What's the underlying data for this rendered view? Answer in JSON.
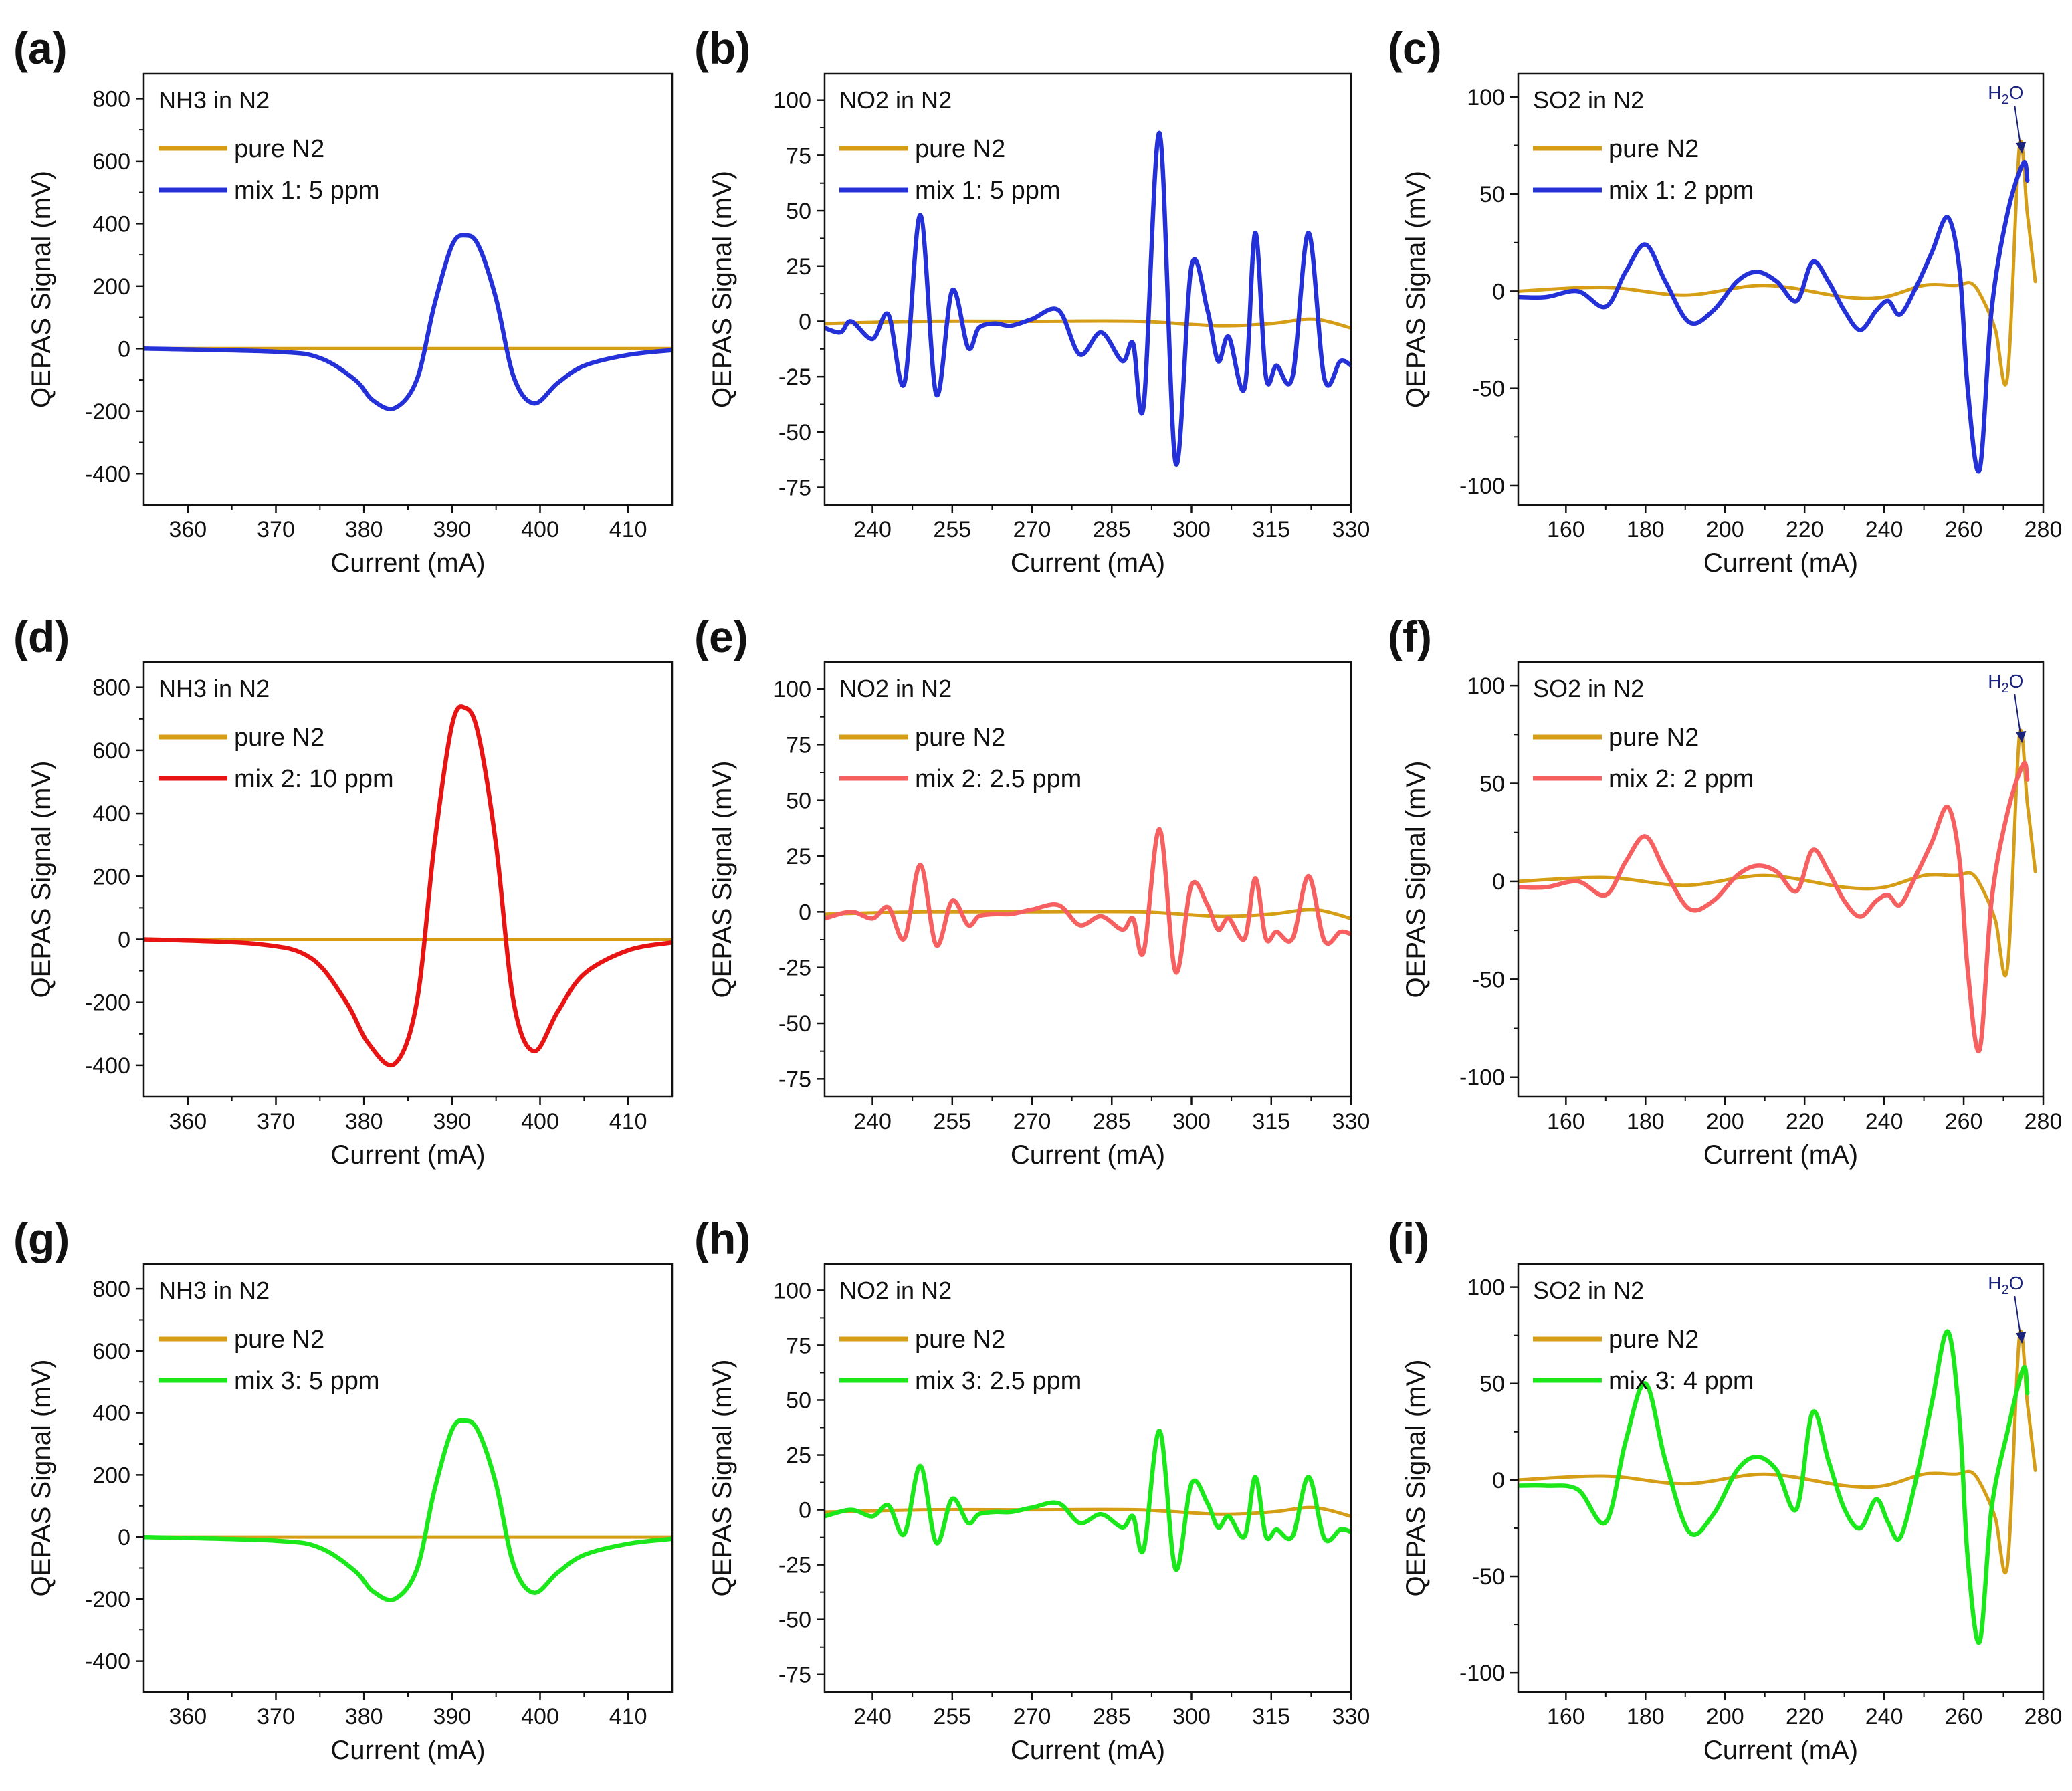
{
  "figure": {
    "background": "#ffffff"
  },
  "chart_data": [
    {
      "panel": "(a)",
      "type": "line",
      "gas_title": "NH3 in N2",
      "xlabel": "Current (mA)",
      "ylabel": "QEPAS Signal (mV)",
      "xlim": [
        355,
        415
      ],
      "ylim": [
        -500,
        880
      ],
      "xticks": [
        360,
        370,
        380,
        390,
        400,
        410
      ],
      "yticks": [
        -400,
        -200,
        0,
        200,
        400,
        600,
        800
      ],
      "series": [
        {
          "name": "pure N2",
          "color": "#d69e16",
          "x": [
            355,
            415
          ],
          "y": [
            0,
            0
          ]
        },
        {
          "name": "mix 1: 5 ppm",
          "color": "#2430d8",
          "x": [
            355,
            370,
            375,
            379,
            381,
            383.5,
            386,
            388,
            390,
            391.5,
            393,
            395,
            397,
            399.3,
            402,
            405,
            410,
            415
          ],
          "y": [
            0,
            -10,
            -30,
            -100,
            -165,
            -190,
            -100,
            140,
            330,
            362,
            330,
            160,
            -90,
            -175,
            -110,
            -55,
            -20,
            -5
          ]
        }
      ]
    },
    {
      "panel": "(b)",
      "type": "line",
      "gas_title": "NO2 in N2",
      "xlabel": "Current (mA)",
      "ylabel": "QEPAS Signal (mV)",
      "xlim": [
        231,
        330
      ],
      "ylim": [
        -83,
        112
      ],
      "xticks": [
        240,
        255,
        270,
        285,
        300,
        315,
        330
      ],
      "yticks": [
        -75,
        -50,
        -25,
        0,
        25,
        50,
        75,
        100
      ],
      "series": [
        {
          "name": "pure N2",
          "color": "#d69e16",
          "x": [
            231,
            250,
            270,
            290,
            305,
            315,
            323,
            330
          ],
          "y": [
            -1,
            0,
            0,
            0,
            -2,
            -1,
            1,
            -3
          ]
        },
        {
          "name": "mix 1: 5 ppm",
          "color": "#2430d8",
          "x": [
            231,
            234,
            236,
            240,
            243,
            246,
            249,
            252,
            255,
            258,
            260,
            263,
            266,
            270,
            275,
            279,
            283,
            287,
            289,
            291,
            294,
            297,
            300,
            303,
            305,
            307,
            310,
            312,
            314,
            316,
            319,
            322,
            325,
            328,
            330
          ],
          "y": [
            -3,
            -5,
            0,
            -8,
            3,
            -28,
            48,
            -33,
            14,
            -12,
            -3,
            -1,
            -2,
            1,
            5,
            -15,
            -5,
            -18,
            -10,
            -38,
            85,
            -64,
            25,
            5,
            -18,
            -7,
            -30,
            40,
            -25,
            -20,
            -25,
            40,
            -26,
            -18,
            -20
          ]
        }
      ]
    },
    {
      "panel": "(c)",
      "type": "line",
      "gas_title": "SO2 in N2",
      "annotation": "H2O",
      "xlabel": "Current (mA)",
      "ylabel": "QEPAS Signal (mV)",
      "xlim": [
        148,
        280
      ],
      "ylim": [
        -110,
        112
      ],
      "xticks": [
        160,
        180,
        200,
        220,
        240,
        260,
        280
      ],
      "yticks": [
        -100,
        -50,
        0,
        50,
        100
      ],
      "series": [
        {
          "name": "pure N2",
          "color": "#d69e16",
          "x": [
            148,
            170,
            190,
            210,
            230,
            240,
            250,
            258,
            262,
            265,
            268,
            271,
            274,
            276,
            278
          ],
          "y": [
            0,
            2,
            -2,
            3,
            -3,
            -3,
            3,
            3,
            4,
            -5,
            -20,
            -44,
            74,
            40,
            5
          ]
        },
        {
          "name": "mix 1: 2 ppm",
          "color": "#2430d8",
          "x": [
            148,
            155,
            163,
            170,
            175,
            180,
            185,
            191,
            197,
            203,
            208,
            213,
            218,
            222,
            226,
            230,
            234,
            238,
            241,
            244,
            248,
            252,
            256,
            259,
            261,
            264,
            267,
            271,
            275,
            276
          ],
          "y": [
            -3,
            -3,
            0,
            -8,
            10,
            24,
            5,
            -16,
            -10,
            5,
            10,
            5,
            -5,
            15,
            5,
            -10,
            -20,
            -10,
            -5,
            -12,
            2,
            20,
            38,
            10,
            -50,
            -92,
            -10,
            40,
            66,
            57
          ]
        }
      ]
    },
    {
      "panel": "(d)",
      "type": "line",
      "gas_title": "NH3 in N2",
      "xlabel": "Current (mA)",
      "ylabel": "QEPAS Signal (mV)",
      "xlim": [
        355,
        415
      ],
      "ylim": [
        -500,
        880
      ],
      "xticks": [
        360,
        370,
        380,
        390,
        400,
        410
      ],
      "yticks": [
        -400,
        -200,
        0,
        200,
        400,
        600,
        800
      ],
      "series": [
        {
          "name": "pure N2",
          "color": "#d69e16",
          "x": [
            355,
            415
          ],
          "y": [
            0,
            0
          ]
        },
        {
          "name": "mix 2: 10 ppm",
          "color": "#e81414",
          "x": [
            355,
            368,
            374,
            378,
            380.5,
            383.5,
            386,
            388,
            390,
            391.5,
            393,
            395,
            397,
            399.3,
            402,
            405,
            410,
            415
          ],
          "y": [
            0,
            -15,
            -60,
            -200,
            -330,
            -395,
            -200,
            300,
            680,
            735,
            650,
            300,
            -200,
            -355,
            -230,
            -110,
            -35,
            -10
          ]
        }
      ]
    },
    {
      "panel": "(e)",
      "type": "line",
      "gas_title": "NO2 in N2",
      "xlabel": "Current (mA)",
      "ylabel": "QEPAS Signal (mV)",
      "xlim": [
        231,
        330
      ],
      "ylim": [
        -83,
        112
      ],
      "xticks": [
        240,
        255,
        270,
        285,
        300,
        315,
        330
      ],
      "yticks": [
        -75,
        -50,
        -25,
        0,
        25,
        50,
        75,
        100
      ],
      "series": [
        {
          "name": "pure N2",
          "color": "#d69e16",
          "x": [
            231,
            250,
            270,
            290,
            305,
            315,
            323,
            330
          ],
          "y": [
            -1,
            0,
            0,
            0,
            -2,
            -1,
            1,
            -3
          ]
        },
        {
          "name": "mix 2: 2.5 ppm",
          "color": "#f66060",
          "x": [
            231,
            236,
            240,
            243,
            246,
            249,
            252,
            255,
            258,
            260,
            263,
            266,
            270,
            275,
            279,
            283,
            287,
            289,
            291,
            294,
            297,
            300,
            303,
            305,
            307,
            310,
            312,
            314,
            316,
            319,
            322,
            325,
            328,
            330
          ],
          "y": [
            -3,
            0,
            -3,
            2,
            -12,
            21,
            -15,
            5,
            -6,
            -2,
            -1,
            -1,
            1,
            3,
            -6,
            -2,
            -8,
            -3,
            -18,
            37,
            -27,
            12,
            3,
            -8,
            -3,
            -12,
            15,
            -12,
            -9,
            -12,
            16,
            -13,
            -9,
            -10
          ]
        }
      ]
    },
    {
      "panel": "(f)",
      "type": "line",
      "gas_title": "SO2 in N2",
      "annotation": "H2O",
      "xlabel": "Current (mA)",
      "ylabel": "QEPAS Signal (mV)",
      "xlim": [
        148,
        280
      ],
      "ylim": [
        -110,
        112
      ],
      "xticks": [
        160,
        180,
        200,
        220,
        240,
        260,
        280
      ],
      "yticks": [
        -100,
        -50,
        0,
        50,
        100
      ],
      "series": [
        {
          "name": "pure N2",
          "color": "#d69e16",
          "x": [
            148,
            170,
            190,
            210,
            230,
            240,
            250,
            258,
            262,
            265,
            268,
            271,
            274,
            276,
            278
          ],
          "y": [
            0,
            2,
            -2,
            3,
            -3,
            -3,
            3,
            3,
            4,
            -5,
            -20,
            -44,
            74,
            40,
            5
          ]
        },
        {
          "name": "mix 2: 2 ppm",
          "color": "#f66060",
          "x": [
            148,
            155,
            163,
            170,
            175,
            180,
            185,
            191,
            197,
            203,
            208,
            213,
            218,
            222,
            226,
            230,
            234,
            238,
            241,
            244,
            248,
            252,
            256,
            259,
            261,
            264,
            267,
            271,
            275,
            276
          ],
          "y": [
            -3,
            -3,
            0,
            -7,
            10,
            23,
            5,
            -14,
            -10,
            3,
            8,
            5,
            -5,
            16,
            5,
            -10,
            -18,
            -10,
            -7,
            -12,
            3,
            20,
            38,
            10,
            -45,
            -86,
            -10,
            35,
            60,
            52
          ]
        }
      ]
    },
    {
      "panel": "(g)",
      "type": "line",
      "gas_title": "NH3 in N2",
      "xlabel": "Current (mA)",
      "ylabel": "QEPAS Signal (mV)",
      "xlim": [
        355,
        415
      ],
      "ylim": [
        -500,
        880
      ],
      "xticks": [
        360,
        370,
        380,
        390,
        400,
        410
      ],
      "yticks": [
        -400,
        -200,
        0,
        200,
        400,
        600,
        800
      ],
      "series": [
        {
          "name": "pure N2",
          "color": "#d69e16",
          "x": [
            355,
            415
          ],
          "y": [
            0,
            0
          ]
        },
        {
          "name": "mix 3: 5 ppm",
          "color": "#1ae81a",
          "x": [
            355,
            370,
            375,
            379,
            381,
            383.5,
            386,
            388,
            390,
            391.5,
            393,
            395,
            397,
            399.3,
            402,
            405,
            410,
            415
          ],
          "y": [
            0,
            -12,
            -35,
            -110,
            -175,
            -200,
            -105,
            150,
            345,
            375,
            340,
            170,
            -90,
            -180,
            -115,
            -58,
            -22,
            -6
          ]
        }
      ]
    },
    {
      "panel": "(h)",
      "type": "line",
      "gas_title": "NO2 in N2",
      "xlabel": "Current (mA)",
      "ylabel": "QEPAS Signal (mV)",
      "xlim": [
        231,
        330
      ],
      "ylim": [
        -83,
        112
      ],
      "xticks": [
        240,
        255,
        270,
        285,
        300,
        315,
        330
      ],
      "yticks": [
        -75,
        -50,
        -25,
        0,
        25,
        50,
        75,
        100
      ],
      "series": [
        {
          "name": "pure N2",
          "color": "#d69e16",
          "x": [
            231,
            250,
            270,
            290,
            305,
            315,
            323,
            330
          ],
          "y": [
            -1,
            0,
            0,
            0,
            -2,
            -1,
            1,
            -3
          ]
        },
        {
          "name": "mix 3: 2.5 ppm",
          "color": "#1ae81a",
          "x": [
            231,
            236,
            240,
            243,
            246,
            249,
            252,
            255,
            258,
            260,
            263,
            266,
            270,
            275,
            279,
            283,
            287,
            289,
            291,
            294,
            297,
            300,
            303,
            305,
            307,
            310,
            312,
            314,
            316,
            319,
            322,
            325,
            328,
            330
          ],
          "y": [
            -3,
            0,
            -3,
            2,
            -11,
            20,
            -15,
            5,
            -6,
            -2,
            -1,
            -1,
            1,
            3,
            -6,
            -2,
            -8,
            -3,
            -18,
            36,
            -27,
            12,
            3,
            -8,
            -3,
            -12,
            15,
            -12,
            -9,
            -12,
            15,
            -13,
            -9,
            -10
          ]
        }
      ]
    },
    {
      "panel": "(i)",
      "type": "line",
      "gas_title": "SO2 in N2",
      "annotation": "H2O",
      "xlabel": "Current (mA)",
      "ylabel": "QEPAS Signal (mV)",
      "xlim": [
        148,
        280
      ],
      "ylim": [
        -110,
        112
      ],
      "xticks": [
        160,
        180,
        200,
        220,
        240,
        260,
        280
      ],
      "yticks": [
        -100,
        -50,
        0,
        50,
        100
      ],
      "series": [
        {
          "name": "pure N2",
          "color": "#d69e16",
          "x": [
            148,
            170,
            190,
            210,
            230,
            240,
            250,
            258,
            262,
            265,
            268,
            271,
            274,
            276,
            278
          ],
          "y": [
            0,
            2,
            -2,
            3,
            -3,
            -3,
            3,
            3,
            4,
            -5,
            -20,
            -44,
            74,
            40,
            5
          ]
        },
        {
          "name": "mix 3: 4 ppm",
          "color": "#1ae81a",
          "x": [
            148,
            155,
            163,
            170,
            175,
            180,
            185,
            191,
            197,
            203,
            208,
            213,
            218,
            222,
            226,
            230,
            234,
            238,
            241,
            244,
            248,
            252,
            256,
            259,
            261,
            264,
            267,
            271,
            275,
            276
          ],
          "y": [
            -3,
            -3,
            -5,
            -22,
            20,
            50,
            10,
            -27,
            -18,
            5,
            12,
            5,
            -15,
            35,
            10,
            -15,
            -25,
            -10,
            -22,
            -30,
            0,
            40,
            77,
            30,
            -40,
            -84,
            -15,
            25,
            58,
            45
          ]
        }
      ]
    }
  ]
}
